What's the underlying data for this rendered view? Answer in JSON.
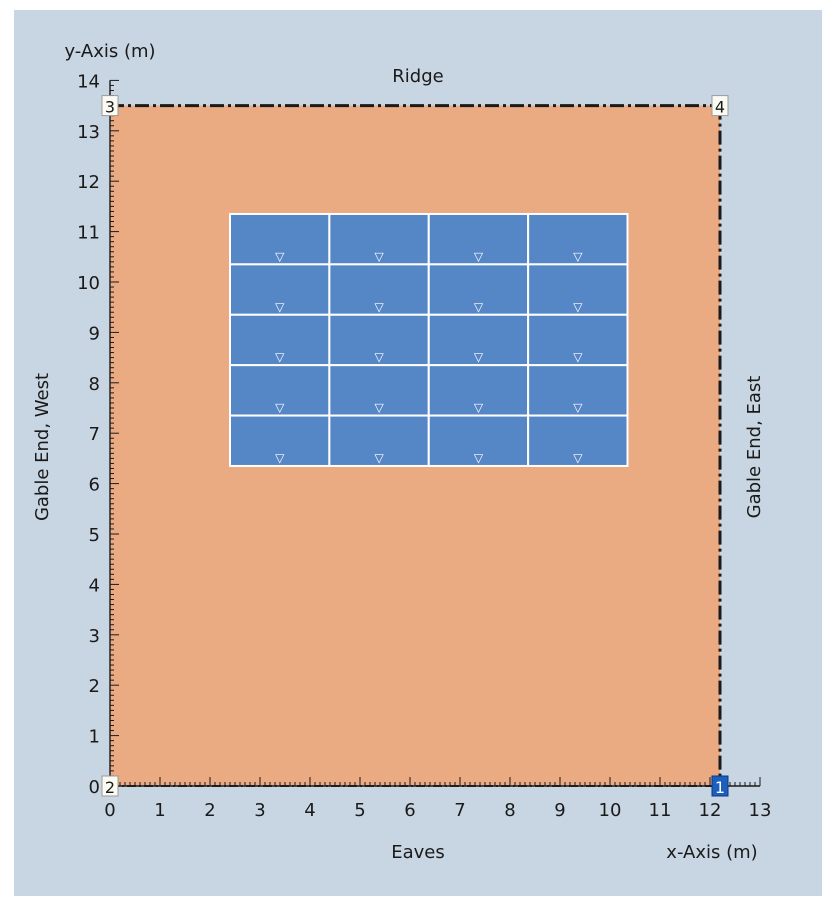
{
  "panel": {
    "background": "#c8d5e2"
  },
  "axes": {
    "y_title": "y-Axis (m)",
    "x_title": "x-Axis (m)",
    "top_label": "Ridge",
    "bottom_label": "Eaves",
    "left_label": "Gable End, West",
    "right_label": "Gable End, East",
    "x_range": [
      0,
      13
    ],
    "y_range": [
      0,
      14
    ],
    "x_ticks": [
      "0",
      "1",
      "2",
      "3",
      "4",
      "5",
      "6",
      "7",
      "8",
      "9",
      "10",
      "11",
      "12",
      "13"
    ],
    "y_ticks": [
      "0",
      "1",
      "2",
      "3",
      "4",
      "5",
      "6",
      "7",
      "8",
      "9",
      "10",
      "11",
      "12",
      "13",
      "14"
    ]
  },
  "roof": {
    "color": "#eaaa82",
    "x_min": 0,
    "x_max": 12.2,
    "y_min": 0,
    "y_max": 13.5,
    "corners": [
      {
        "label": "1",
        "x": 12.2,
        "y": 0,
        "highlighted": true
      },
      {
        "label": "2",
        "x": 0,
        "y": 0,
        "highlighted": false
      },
      {
        "label": "3",
        "x": 0,
        "y": 13.5,
        "highlighted": false
      },
      {
        "label": "4",
        "x": 12.2,
        "y": 13.5,
        "highlighted": false
      }
    ]
  },
  "pv_array": {
    "color": "#5587c6",
    "border_color": "#ffffff",
    "x_start": 2.4,
    "x_end": 10.35,
    "y_start": 6.35,
    "y_end": 11.35,
    "columns": 4,
    "rows": 5,
    "marker_symbol": "▽"
  }
}
